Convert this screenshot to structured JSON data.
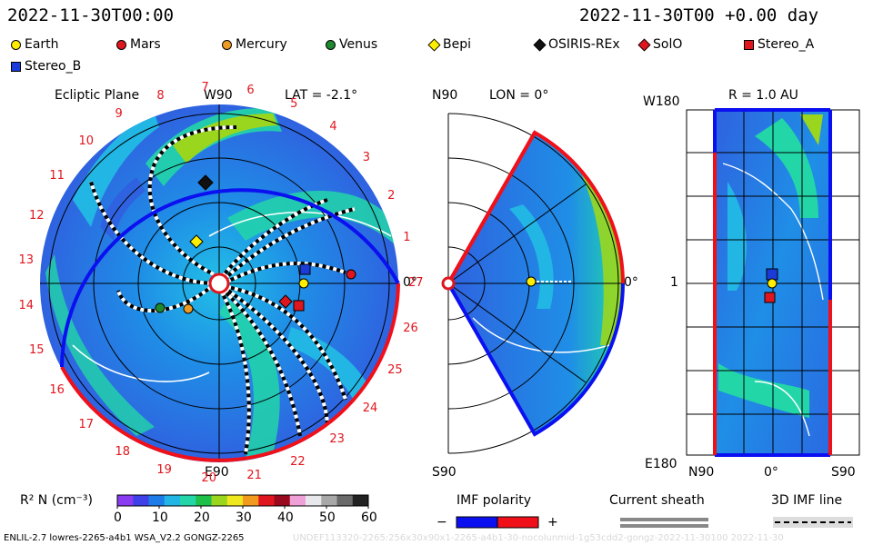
{
  "header": {
    "left_time": "2022-11-30T00:00",
    "right_time": "2022-11-30T00 +0.00 day"
  },
  "legend": [
    {
      "label": "Earth",
      "shape": "circle",
      "color": "#ffee00"
    },
    {
      "label": "Mars",
      "shape": "circle",
      "color": "#e0161e"
    },
    {
      "label": "Mercury",
      "shape": "circle",
      "color": "#ee9a22"
    },
    {
      "label": "Venus",
      "shape": "circle",
      "color": "#1e8a2e"
    },
    {
      "label": "Bepi",
      "shape": "diamond",
      "color": "#ffee00"
    },
    {
      "label": "OSIRIS-REx",
      "shape": "diamond",
      "color": "#111111"
    },
    {
      "label": "SolO",
      "shape": "diamond",
      "color": "#e0161e"
    },
    {
      "label": "Stereo_A",
      "shape": "square",
      "color": "#e0161e"
    },
    {
      "label": "Stereo_B",
      "shape": "square",
      "color": "#1b3bd8"
    }
  ],
  "panels": {
    "ecliptic": {
      "title": "Ecliptic Plane",
      "lat": "LAT = -2.1°",
      "top_label": "W90",
      "bottom_label": "E90",
      "right_label": "0°",
      "rotations": [
        "1",
        "2",
        "3",
        "4",
        "5",
        "6",
        "7",
        "8",
        "9",
        "10",
        "11",
        "12",
        "13",
        "14",
        "15",
        "16",
        "17",
        "18",
        "19",
        "20",
        "21",
        "22",
        "23",
        "24",
        "25",
        "26",
        "27"
      ]
    },
    "meridional": {
      "top_label": "N90",
      "lon": "LON = 0°",
      "bottom_label": "S90",
      "right_label": "0°"
    },
    "map": {
      "radius": "R = 1.0 AU",
      "top_left": "W180",
      "left_mid": "1",
      "bottom_left": "E180",
      "x_left": "N90",
      "x_mid": "0°",
      "x_right": "S90"
    }
  },
  "colorbar": {
    "label": "R² N (cm⁻³)",
    "ticks": [
      "0",
      "10",
      "20",
      "30",
      "40",
      "50",
      "60"
    ],
    "stops": [
      "#8a3cf0",
      "#4040e8",
      "#1d7ce8",
      "#22b6e4",
      "#22d6a8",
      "#1ec04a",
      "#9ad61e",
      "#f0e81e",
      "#f09a1e",
      "#e0161e",
      "#9a0a1e",
      "#f0a0d8",
      "#e8e8ec",
      "#a8a8a8",
      "#6a6a6a",
      "#222222"
    ]
  },
  "imf": {
    "title": "IMF polarity",
    "minus": "−",
    "plus": "+",
    "neg_color": "#0b10f0",
    "pos_color": "#f0101a"
  },
  "sheath": {
    "title": "Current sheath"
  },
  "imf3d": {
    "title": "3D IMF line"
  },
  "footer": {
    "left": "ENLIL-2.7 lowres-2265-a4b1 WSA_V2.2 GONGZ-2265",
    "right": "UNDEF113320-2265:256x30x90x1-2265-a4b1-30-nocolunmid-1g53cdd2-gongz-2022-11-30100   2022-11-30"
  }
}
